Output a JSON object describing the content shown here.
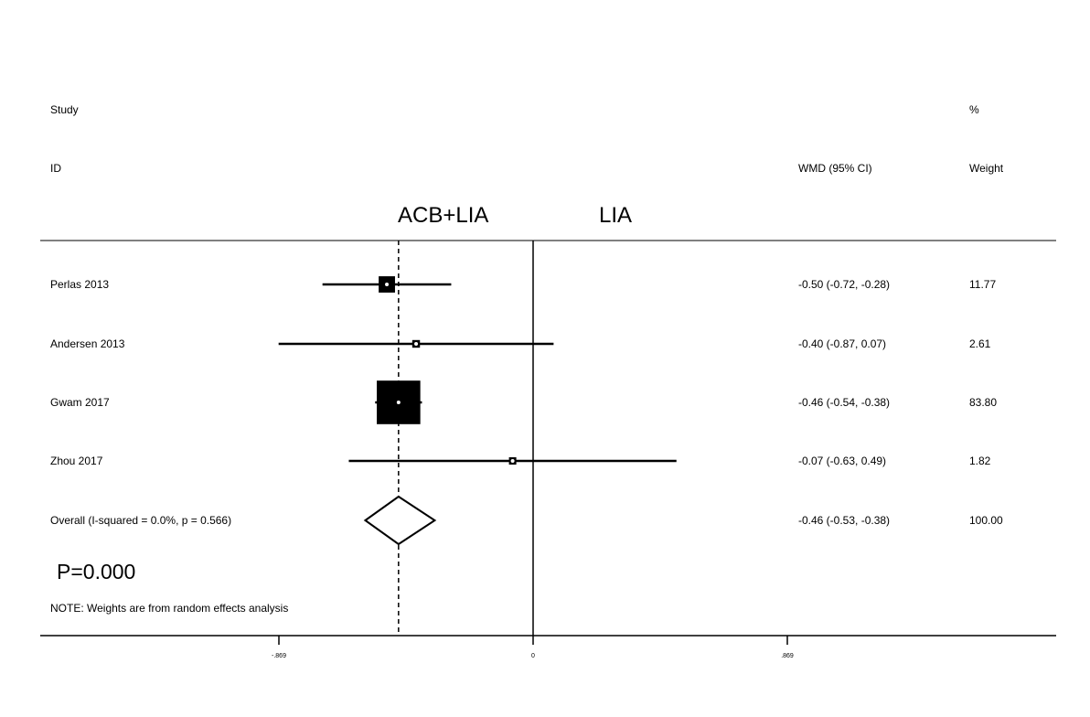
{
  "headers": {
    "study": "Study",
    "id": "ID",
    "effect": "WMD (95% CI)",
    "pct": "%",
    "weight": "Weight"
  },
  "groups": {
    "left": "ACB+LIA",
    "right": "LIA"
  },
  "p_value": "P=0.000",
  "note": "NOTE: Weights are from random effects analysis",
  "chart_data": {
    "type": "forest",
    "x_range": [
      -0.869,
      0.869
    ],
    "x_ticks": [
      "-.869",
      "0",
      ".869"
    ],
    "null_line": 0,
    "overall_line": -0.46,
    "studies": [
      {
        "label": "Perlas 2013",
        "est": -0.5,
        "lo": -0.72,
        "hi": -0.28,
        "ci_text": "-0.50 (-0.72, -0.28)",
        "weight": 11.77,
        "weight_text": "11.77"
      },
      {
        "label": "Andersen 2013",
        "est": -0.4,
        "lo": -0.87,
        "hi": 0.07,
        "ci_text": "-0.40 (-0.87, 0.07)",
        "weight": 2.61,
        "weight_text": "2.61"
      },
      {
        "label": "Gwam 2017",
        "est": -0.46,
        "lo": -0.54,
        "hi": -0.38,
        "ci_text": "-0.46 (-0.54, -0.38)",
        "weight": 83.8,
        "weight_text": "83.80"
      },
      {
        "label": "Zhou 2017",
        "est": -0.07,
        "lo": -0.63,
        "hi": 0.49,
        "ci_text": "-0.07 (-0.63, 0.49)",
        "weight": 1.82,
        "weight_text": "1.82"
      }
    ],
    "overall": {
      "label": "Overall  (I-squared = 0.0%, p = 0.566)",
      "est": -0.46,
      "lo": -0.53,
      "hi": -0.38,
      "ci_text": "-0.46 (-0.53, -0.38)",
      "weight_text": "100.00"
    }
  }
}
